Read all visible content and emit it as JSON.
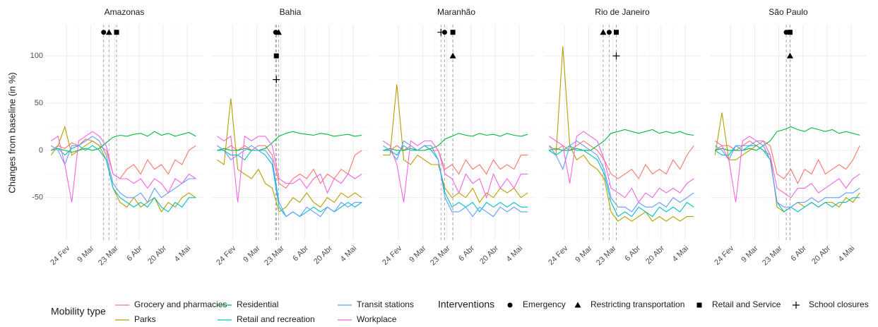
{
  "chart_data": {
    "type": "line",
    "ylabel": "Changes from baseline (in %)",
    "xlim": [
      43,
      134
    ],
    "ylim": [
      -95,
      133
    ],
    "xticks": [
      {
        "value": 55,
        "label": "24 Fev"
      },
      {
        "value": 69,
        "label": "9 Mar"
      },
      {
        "value": 83,
        "label": "23 Mar"
      },
      {
        "value": 97,
        "label": "6 Abr"
      },
      {
        "value": 111,
        "label": "20 Abr"
      },
      {
        "value": 125,
        "label": "4 Mai"
      }
    ],
    "yticks": [
      -50,
      0,
      50,
      100
    ],
    "grid": true,
    "x": [
      46,
      50,
      54,
      58,
      62,
      66,
      70,
      74,
      78,
      82,
      86,
      90,
      94,
      98,
      102,
      106,
      110,
      114,
      118,
      122,
      126,
      130
    ],
    "legend_title": "Mobility type",
    "series": [
      {
        "name": "Grocery and pharmacies",
        "color": "#F8766D"
      },
      {
        "name": "Parks",
        "color": "#B79F00"
      },
      {
        "name": "Residential",
        "color": "#00BA38"
      },
      {
        "name": "Retail and recreation",
        "color": "#00BFC4"
      },
      {
        "name": "Transit stations",
        "color": "#619CFF"
      },
      {
        "name": "Workplace",
        "color": "#F564E3"
      }
    ],
    "interventions_title": "Interventions",
    "interventions": [
      {
        "name": "Emergency",
        "shape": "circle",
        "x": [
          76.5,
          80,
          81.7,
          80.9,
          87.3
        ],
        "y": [
          125,
          125,
          125,
          125,
          125
        ]
      },
      {
        "name": "Restricting transportation",
        "shape": "triangle",
        "x": [
          79.6,
          81.7,
          86.5,
          77.4,
          89.5
        ],
        "y": [
          125,
          125,
          100,
          125,
          100
        ]
      },
      {
        "name": "Retail and Service",
        "shape": "square",
        "x": [
          84,
          80.4,
          86.5,
          85,
          89.5
        ],
        "y": [
          125,
          100,
          125,
          125,
          125
        ]
      },
      {
        "name": "School closures",
        "shape": "plus",
        "x": [
          null,
          80.4,
          79.6,
          85,
          null
        ],
        "y": [
          null,
          75,
          125,
          100,
          null
        ]
      }
    ],
    "panels": [
      {
        "title": "Amazonas",
        "values": [
          [
            0,
            5,
            2,
            8,
            5,
            12,
            10,
            5,
            0,
            -25,
            -30,
            -20,
            -15,
            -25,
            -10,
            -20,
            -15,
            -25,
            -10,
            -15,
            0,
            5
          ],
          [
            -5,
            5,
            25,
            -5,
            0,
            5,
            10,
            5,
            -10,
            -40,
            -55,
            -60,
            -50,
            -60,
            -55,
            -50,
            -65,
            -55,
            -60,
            -50,
            -45,
            -50
          ],
          [
            0,
            2,
            0,
            -2,
            0,
            2,
            0,
            2,
            8,
            14,
            16,
            15,
            17,
            18,
            15,
            20,
            16,
            18,
            15,
            17,
            19,
            15
          ],
          [
            0,
            2,
            -5,
            2,
            5,
            0,
            5,
            0,
            -10,
            -40,
            -50,
            -55,
            -60,
            -55,
            -60,
            -50,
            -60,
            -65,
            -55,
            -60,
            -50,
            -50
          ],
          [
            5,
            0,
            -15,
            5,
            5,
            10,
            15,
            10,
            -5,
            -35,
            -45,
            -50,
            -50,
            -45,
            -55,
            -40,
            -50,
            -45,
            -40,
            -35,
            -30,
            -30
          ],
          [
            10,
            15,
            -15,
            -55,
            10,
            15,
            20,
            15,
            5,
            -25,
            -30,
            -30,
            -35,
            -30,
            -40,
            -30,
            -35,
            -45,
            -30,
            -35,
            -25,
            -30
          ]
        ]
      },
      {
        "title": "Bahia",
        "values": [
          [
            5,
            0,
            5,
            0,
            5,
            0,
            5,
            5,
            -5,
            -35,
            -40,
            -30,
            -25,
            -30,
            -20,
            -35,
            -25,
            -30,
            -20,
            -25,
            -5,
            0
          ],
          [
            -10,
            -15,
            55,
            -20,
            -25,
            -30,
            -20,
            -35,
            -40,
            -65,
            -60,
            -50,
            -55,
            -45,
            -55,
            -60,
            -50,
            -55,
            -45,
            -50,
            -45,
            -50
          ],
          [
            0,
            2,
            0,
            0,
            2,
            0,
            0,
            2,
            8,
            15,
            18,
            20,
            18,
            17,
            16,
            18,
            17,
            15,
            16,
            17,
            15,
            16
          ],
          [
            0,
            0,
            -5,
            -5,
            -10,
            0,
            0,
            -5,
            -15,
            -60,
            -70,
            -65,
            -70,
            -65,
            -60,
            -65,
            -60,
            -65,
            -60,
            -55,
            -60,
            -55
          ],
          [
            5,
            0,
            -10,
            -5,
            0,
            5,
            0,
            0,
            -10,
            -55,
            -70,
            -65,
            -70,
            -60,
            -65,
            -70,
            -60,
            -65,
            -55,
            -60,
            -55,
            -55
          ],
          [
            15,
            10,
            15,
            -55,
            15,
            10,
            15,
            15,
            5,
            -30,
            -35,
            -35,
            -30,
            -40,
            -30,
            -25,
            -45,
            -30,
            -35,
            -25,
            -30,
            -25
          ]
        ]
      },
      {
        "title": "Maranhão",
        "values": [
          [
            0,
            0,
            5,
            0,
            5,
            0,
            5,
            0,
            0,
            -20,
            -15,
            -25,
            -10,
            -20,
            -15,
            -25,
            -10,
            -20,
            -15,
            -20,
            -5,
            -5
          ],
          [
            -5,
            -5,
            70,
            -10,
            -15,
            -5,
            -10,
            -15,
            -15,
            -40,
            -50,
            -45,
            -50,
            -40,
            -55,
            -45,
            -50,
            -40,
            -45,
            -40,
            -50,
            -45
          ],
          [
            0,
            2,
            0,
            0,
            2,
            0,
            0,
            2,
            5,
            12,
            15,
            18,
            16,
            15,
            18,
            16,
            17,
            15,
            18,
            16,
            15,
            17
          ],
          [
            0,
            0,
            -5,
            5,
            0,
            0,
            5,
            0,
            -10,
            -45,
            -60,
            -55,
            -60,
            -55,
            -65,
            -55,
            -60,
            -55,
            -60,
            -55,
            -60,
            -60
          ],
          [
            5,
            0,
            -10,
            10,
            5,
            0,
            5,
            5,
            -10,
            -50,
            -65,
            -65,
            -60,
            -70,
            -60,
            -65,
            -70,
            -60,
            -65,
            -60,
            -65,
            -65
          ],
          [
            10,
            5,
            -15,
            -55,
            10,
            5,
            10,
            10,
            0,
            -25,
            -30,
            -45,
            -25,
            -35,
            -30,
            -50,
            -25,
            -40,
            -30,
            -40,
            -25,
            -25
          ]
        ]
      },
      {
        "title": "Rio de Janeiro",
        "values": [
          [
            5,
            0,
            5,
            0,
            5,
            10,
            5,
            0,
            -10,
            -25,
            -30,
            -25,
            -20,
            -30,
            -15,
            -25,
            -20,
            -25,
            -10,
            -20,
            -5,
            5
          ],
          [
            0,
            -5,
            110,
            5,
            -10,
            -5,
            -15,
            -20,
            -30,
            -65,
            -75,
            -70,
            -75,
            -70,
            -65,
            -75,
            -70,
            -75,
            -70,
            -75,
            -70,
            -70
          ],
          [
            0,
            2,
            0,
            0,
            2,
            0,
            0,
            5,
            10,
            18,
            20,
            22,
            20,
            18,
            20,
            22,
            18,
            20,
            18,
            20,
            17,
            16
          ],
          [
            0,
            -5,
            0,
            5,
            0,
            0,
            -5,
            -10,
            -25,
            -55,
            -70,
            -65,
            -70,
            -60,
            -65,
            -70,
            -60,
            -65,
            -60,
            -65,
            -55,
            -60
          ],
          [
            5,
            -5,
            -20,
            5,
            10,
            5,
            0,
            -5,
            -20,
            -50,
            -60,
            -60,
            -65,
            -55,
            -60,
            -60,
            -55,
            -60,
            -50,
            -55,
            -50,
            -45
          ],
          [
            15,
            10,
            5,
            -35,
            15,
            20,
            15,
            10,
            -10,
            -40,
            -45,
            -50,
            -40,
            -55,
            -45,
            -50,
            -40,
            -45,
            -40,
            -45,
            -35,
            -30
          ]
        ]
      },
      {
        "title": "São Paulo",
        "values": [
          [
            0,
            5,
            5,
            0,
            5,
            10,
            5,
            10,
            5,
            -25,
            -30,
            -20,
            -35,
            -20,
            -25,
            -10,
            -25,
            -20,
            -15,
            -20,
            -10,
            5
          ],
          [
            -5,
            40,
            -10,
            -10,
            -5,
            0,
            5,
            0,
            -5,
            -60,
            -65,
            -60,
            -55,
            -60,
            -55,
            -60,
            -55,
            -55,
            -60,
            -50,
            -55,
            -45
          ],
          [
            0,
            2,
            0,
            0,
            0,
            2,
            0,
            5,
            10,
            20,
            22,
            25,
            22,
            20,
            24,
            22,
            20,
            22,
            18,
            20,
            18,
            16
          ],
          [
            0,
            -5,
            -5,
            5,
            0,
            5,
            5,
            0,
            -10,
            -55,
            -65,
            -60,
            -65,
            -60,
            -55,
            -60,
            -55,
            -60,
            -55,
            -55,
            -50,
            -50
          ],
          [
            5,
            0,
            -10,
            5,
            5,
            5,
            10,
            5,
            -10,
            -55,
            -60,
            -60,
            -55,
            -55,
            -50,
            -55,
            -50,
            -50,
            -50,
            -45,
            -45,
            -40
          ],
          [
            10,
            5,
            -10,
            -55,
            10,
            15,
            10,
            10,
            -5,
            -40,
            -45,
            -50,
            -40,
            -40,
            -35,
            -45,
            -40,
            -35,
            -30,
            -40,
            -30,
            -25
          ]
        ]
      }
    ]
  }
}
